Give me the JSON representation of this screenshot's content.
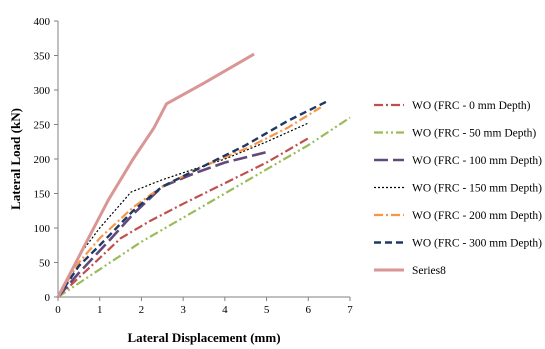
{
  "chart_data": {
    "type": "line",
    "title": "",
    "xlabel": "Lateral Displacement (mm)",
    "ylabel": "Lateral Load (kN)",
    "xlim": [
      0,
      7
    ],
    "ylim": [
      0,
      400
    ],
    "xticks": [
      0,
      1,
      2,
      3,
      4,
      5,
      6,
      7
    ],
    "yticks": [
      0,
      50,
      100,
      150,
      200,
      250,
      300,
      350,
      400
    ],
    "grid": false,
    "legend_position": "right",
    "series": [
      {
        "name": "WO (FRC - 0 mm Depth)",
        "color": "#c0504d",
        "dash": "dash-dot",
        "x": [
          0,
          0.8,
          1.5,
          2.2,
          3.0,
          4.0,
          5.0,
          6.0
        ],
        "y": [
          0,
          45,
          85,
          110,
          135,
          165,
          195,
          230
        ]
      },
      {
        "name": "WO (FRC - 50 mm Depth)",
        "color": "#9bbb59",
        "dash": "dash-dot-dot",
        "x": [
          0,
          1.0,
          2.0,
          3.0,
          4.0,
          5.0,
          6.0,
          7.0
        ],
        "y": [
          0,
          40,
          80,
          115,
          150,
          185,
          220,
          260
        ]
      },
      {
        "name": "WO (FRC - 100 mm Depth)",
        "color": "#604a7b",
        "dash": "long-dash",
        "x": [
          0,
          0.5,
          1.2,
          1.8,
          2.5,
          3.3,
          4.0,
          5.0
        ],
        "y": [
          0,
          35,
          80,
          120,
          160,
          180,
          195,
          210
        ]
      },
      {
        "name": "WO (FRC - 150 mm Depth)",
        "color": "#000000",
        "dash": "dotted",
        "x": [
          0,
          0.5,
          1.0,
          1.75,
          2.5,
          4.0,
          5.0,
          6.0
        ],
        "y": [
          0,
          60,
          100,
          152,
          170,
          200,
          225,
          252
        ]
      },
      {
        "name": "WO (FRC - 200 mm Depth)",
        "color": "#f79646",
        "dash": "dash-dot",
        "x": [
          0,
          0.5,
          1.0,
          1.8,
          2.5,
          3.5,
          4.5,
          5.5,
          6.3
        ],
        "y": [
          0,
          50,
          85,
          130,
          160,
          190,
          215,
          245,
          275
        ]
      },
      {
        "name": "WO (FRC - 300 mm Depth)",
        "color": "#1f3864",
        "dash": "dashed",
        "x": [
          0,
          0.5,
          1.0,
          1.8,
          2.5,
          3.5,
          4.5,
          5.5,
          6.5
        ],
        "y": [
          0,
          45,
          75,
          125,
          160,
          190,
          220,
          255,
          285
        ]
      },
      {
        "name": "Series8",
        "color": "#d99694",
        "dash": "solid",
        "x": [
          0,
          0.6,
          1.2,
          1.8,
          2.3,
          2.6,
          3.5,
          4.7
        ],
        "y": [
          0,
          70,
          140,
          200,
          245,
          280,
          310,
          352
        ]
      }
    ]
  }
}
